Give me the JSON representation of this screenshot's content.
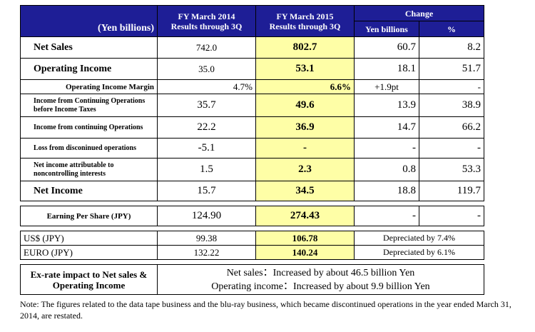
{
  "header": {
    "unit": "(Yen billions)",
    "fy2014": [
      "FY March 2014",
      "Results through 3Q"
    ],
    "fy2015": [
      "FY March 2015",
      "Results through 3Q"
    ],
    "change": "Change",
    "change_yen": "Yen billions",
    "change_pct": "%"
  },
  "rows": [
    {
      "label": "Net Sales",
      "fy2014": "742.0",
      "fy2015": "802.7",
      "chg": "60.7",
      "pct": "8.2"
    },
    {
      "label": "Operating Income",
      "fy2014": "35.0",
      "fy2015": "53.1",
      "chg": "18.1",
      "pct": "51.7"
    },
    {
      "label": "Operating Income Margin",
      "fy2014": "4.7%",
      "fy2015": "6.6%",
      "chg": "+1.9pt",
      "pct": "-"
    },
    {
      "label": "Income from Continuing Operations before Income Taxes",
      "fy2014": "35.7",
      "fy2015": "49.6",
      "chg": "13.9",
      "pct": "38.9"
    },
    {
      "label": "Income from continuing Operations",
      "fy2014": "22.2",
      "fy2015": "36.9",
      "chg": "14.7",
      "pct": "66.2"
    },
    {
      "label": "Loss from disconinued operations",
      "fy2014": "-5.1",
      "fy2015": "-",
      "chg": "-",
      "pct": "-"
    },
    {
      "label": "Net income attributable to noncontrolling interests",
      "fy2014": "1.5",
      "fy2015": "2.3",
      "chg": "0.8",
      "pct": "53.3"
    },
    {
      "label": "Net Income",
      "fy2014": "15.7",
      "fy2015": "34.5",
      "chg": "18.8",
      "pct": "119.7"
    }
  ],
  "eps": {
    "label": "Earning Per Share (JPY)",
    "fy2014": "124.90",
    "fy2015": "274.43",
    "chg": "-",
    "pct": "-"
  },
  "fx": [
    {
      "label": "US$ (JPY)",
      "fy2014": "99.38",
      "fy2015": "106.78",
      "note": "Depreciated by 7.4%"
    },
    {
      "label": "EURO (JPY)",
      "fy2014": "132.22",
      "fy2015": "140.24",
      "note": "Depreciated by 6.1%"
    }
  ],
  "exrate": {
    "label": "Ex-rate impact to Net sales & Operating Income",
    "line1": "Net sales：Increased by about 46.5 billion Yen",
    "line2": "Operating income：Increased by about 9.9 billion Yen"
  },
  "note": "Note: The figures related to the data tape business and the blu-ray business, which became discontinued operations in the year ended March 31, 2014, are restated."
}
